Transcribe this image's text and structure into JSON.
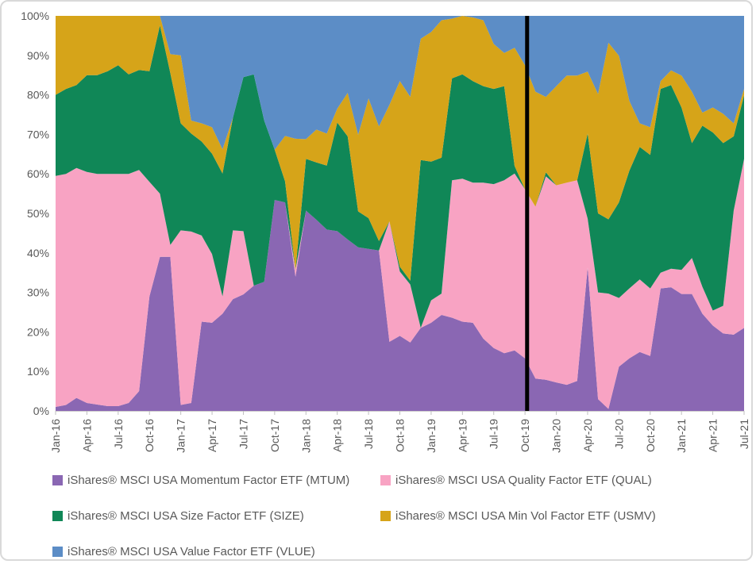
{
  "chart_data": {
    "type": "area",
    "stacked": true,
    "stack_total": 100,
    "title": "",
    "xlabel": "",
    "ylabel": "",
    "ylim": [
      0,
      100
    ],
    "grid": false,
    "legend_position": "bottom",
    "y_ticks": [
      "0%",
      "10%",
      "20%",
      "30%",
      "40%",
      "50%",
      "60%",
      "70%",
      "80%",
      "90%",
      "100%"
    ],
    "x_tick_every": 3,
    "x": [
      "Jan-16",
      "Feb-16",
      "Mar-16",
      "Apr-16",
      "May-16",
      "Jun-16",
      "Jul-16",
      "Aug-16",
      "Sep-16",
      "Oct-16",
      "Nov-16",
      "Dec-16",
      "Jan-17",
      "Feb-17",
      "Mar-17",
      "Apr-17",
      "May-17",
      "Jun-17",
      "Jul-17",
      "Aug-17",
      "Sep-17",
      "Oct-17",
      "Nov-17",
      "Dec-17",
      "Jan-18",
      "Feb-18",
      "Mar-18",
      "Apr-18",
      "May-18",
      "Jun-18",
      "Jul-18",
      "Aug-18",
      "Sep-18",
      "Oct-18",
      "Nov-18",
      "Dec-18",
      "Jan-19",
      "Feb-19",
      "Mar-19",
      "Apr-19",
      "May-19",
      "Jun-19",
      "Jul-19",
      "Aug-19",
      "Sep-19",
      "Oct-19",
      "Nov-19",
      "Dec-19",
      "Jan-20",
      "Feb-20",
      "Mar-20",
      "Apr-20",
      "May-20",
      "Jun-20",
      "Jul-20",
      "Aug-20",
      "Sep-20",
      "Oct-20",
      "Nov-20",
      "Dec-20",
      "Jan-21",
      "Feb-21",
      "Mar-21",
      "Apr-21",
      "May-21",
      "Jun-21",
      "Jul-21"
    ],
    "divider_line": {
      "color": "#000000",
      "x_index": 45.2
    },
    "axis_text_color": "#595959",
    "axis_line_color": "#d0cece",
    "series": [
      {
        "name": "iShares® MSCI USA Momentum Factor ETF (MTUM)",
        "color": "#8A67B3",
        "values": [
          1,
          1.5,
          3.3,
          2,
          1.6,
          1.2,
          1.2,
          2,
          5,
          29,
          39,
          39,
          1.5,
          2,
          22.6,
          22.3,
          24.6,
          28.3,
          29.5,
          31.7,
          32.7,
          53.4,
          52.8,
          34,
          50.7,
          48.4,
          45.9,
          45.5,
          43.4,
          41.4,
          41,
          40.6,
          17.5,
          19,
          17.3,
          21,
          22.3,
          24.3,
          23.6,
          22.6,
          22.3,
          18.3,
          15.9,
          14.6,
          15.3,
          13.3,
          8.2,
          7.9,
          7.2,
          6.6,
          7.6,
          36.3,
          3,
          0.5,
          11.2,
          13.3,
          14.9,
          13.9,
          31,
          31.3,
          29.6,
          29.6,
          24.6,
          21.6,
          19.6,
          19.3,
          21
        ]
      },
      {
        "name": "iShares® MSCI USA Quality Factor ETF (QUAL)",
        "color": "#F8A3C3",
        "values": [
          58.5,
          58.5,
          58.2,
          58.5,
          58.4,
          58.8,
          58.8,
          58,
          56,
          29,
          16,
          3,
          44.2,
          43.4,
          21.8,
          17.4,
          4.4,
          17.4,
          16,
          0,
          0,
          0,
          0,
          1.7,
          0,
          0,
          0,
          0,
          0,
          0,
          0,
          0,
          30.5,
          16.3,
          14.7,
          0,
          5.7,
          5.4,
          34.8,
          36.2,
          35.5,
          39.5,
          41.5,
          43.8,
          44.8,
          42.8,
          43.5,
          51.5,
          49.9,
          51.2,
          50.8,
          12.4,
          27,
          29.2,
          17.4,
          17.7,
          18.4,
          17.1,
          4,
          4.7,
          6.1,
          9.1,
          6.8,
          3.8,
          7,
          31.4,
          42.8
        ]
      },
      {
        "name": "iShares® MSCI USA Size Factor ETF (SIZE)",
        "color": "#108757",
        "values": [
          20.5,
          21.5,
          21,
          24.5,
          25,
          26,
          27.5,
          25.2,
          25.3,
          28,
          42.6,
          43.5,
          27.1,
          24.8,
          23.8,
          25.4,
          31.1,
          28.5,
          39,
          53.5,
          40.8,
          12.7,
          5.3,
          0,
          13.1,
          14.5,
          16.2,
          27.5,
          26.1,
          9.1,
          7.8,
          2.4,
          0,
          1.2,
          1,
          42.5,
          35.1,
          34.4,
          25.8,
          26.4,
          25.7,
          24.4,
          24.1,
          23.8,
          1.9,
          0,
          0,
          1,
          0,
          0,
          0,
          21.5,
          20,
          18.8,
          24.2,
          29.8,
          33.5,
          33.8,
          46.5,
          46.5,
          41.1,
          29.1,
          40.8,
          45.1,
          41.2,
          18.8,
          16.1
        ]
      },
      {
        "name": "iShares® MSCI USA Min Vol Factor ETF (USMV)",
        "color": "#D6A419",
        "values": [
          20,
          18.5,
          17.5,
          15,
          15,
          14,
          12.5,
          14.8,
          13.7,
          14,
          2.4,
          4.8,
          17.2,
          3.3,
          4.6,
          6.7,
          6.1,
          0,
          0,
          0,
          0,
          0,
          11.5,
          33.2,
          5,
          8.3,
          8.1,
          3.5,
          11,
          19.4,
          30.3,
          29,
          29.5,
          47,
          46.5,
          30.7,
          32.8,
          34.8,
          15.1,
          14.8,
          16.1,
          16.7,
          11.4,
          8.4,
          29.9,
          31.4,
          29.1,
          19.1,
          25.1,
          27.1,
          26.5,
          15.7,
          30.2,
          44.7,
          37.1,
          17.7,
          6,
          7,
          2,
          3.7,
          8.1,
          13,
          3.3,
          6.3,
          7.4,
          3.3,
          1.6
        ]
      },
      {
        "name": "iShares® MSCI USA Value Factor ETF (VLUE)",
        "color": "#5C8DC6",
        "values": [
          0,
          0,
          0,
          0,
          0,
          0,
          0,
          0,
          0,
          0,
          0,
          9.7,
          10,
          26.5,
          27.2,
          28.2,
          33.8,
          25.8,
          15.5,
          14.8,
          26.5,
          33.9,
          30.4,
          31.1,
          31.2,
          28.8,
          29.8,
          23.5,
          19.5,
          30.1,
          20.9,
          28,
          22.5,
          16.5,
          20.5,
          5.8,
          4.1,
          1.1,
          0.7,
          0,
          0.4,
          1.1,
          7.1,
          9.4,
          8.1,
          12.5,
          19.2,
          20.5,
          17.8,
          15.1,
          15.1,
          14.1,
          19.8,
          6.8,
          10.1,
          21.5,
          27.2,
          28.2,
          16.5,
          13.8,
          15.1,
          19.2,
          24.5,
          23.2,
          24.8,
          27.2,
          18.5
        ]
      }
    ]
  },
  "legend": {
    "layout": [
      {
        "series_index": 0,
        "col": 0,
        "row": 0
      },
      {
        "series_index": 1,
        "col": 1,
        "row": 0
      },
      {
        "series_index": 2,
        "col": 0,
        "row": 1
      },
      {
        "series_index": 3,
        "col": 1,
        "row": 1
      },
      {
        "series_index": 4,
        "col": 0,
        "row": 2
      }
    ]
  }
}
